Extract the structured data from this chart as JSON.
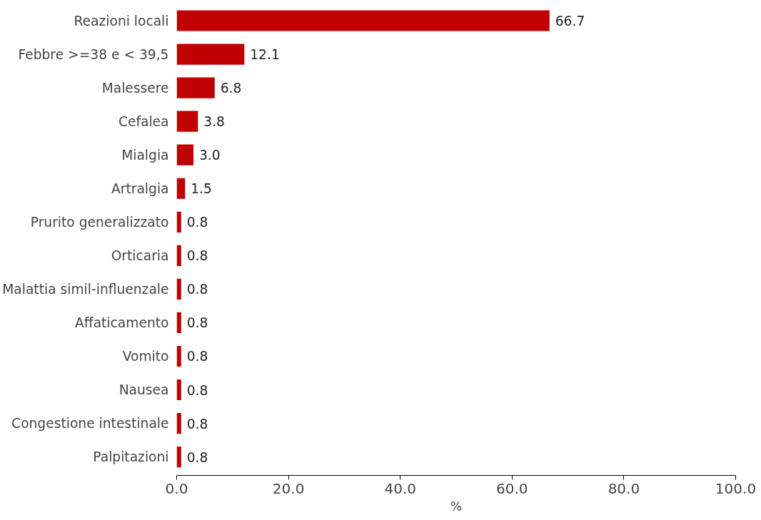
{
  "chart_data": {
    "type": "bar",
    "orientation": "horizontal",
    "xlabel": "%",
    "categories": [
      "Reazioni locali",
      "Febbre >=38 e < 39,5",
      "Malessere",
      "Cefalea",
      "Mialgia",
      "Artralgia",
      "Prurito generalizzato",
      "Orticaria",
      "Malattia simil-influenzale",
      "Affaticamento",
      "Vomito",
      "Nausea",
      "Congestione intestinale",
      "Palpitazioni"
    ],
    "values": [
      66.7,
      12.1,
      6.8,
      3.8,
      3.0,
      1.5,
      0.8,
      0.8,
      0.8,
      0.8,
      0.8,
      0.8,
      0.8,
      0.8
    ],
    "value_labels": [
      "66.7",
      "12.1",
      "6.8",
      "3.8",
      "3.0",
      "1.5",
      "0.8",
      "0.8",
      "0.8",
      "0.8",
      "0.8",
      "0.8",
      "0.8",
      "0.8"
    ],
    "color": "#c00000",
    "xlim": [
      0,
      100
    ],
    "xticks": [
      {
        "value": 0,
        "label": "0.0"
      },
      {
        "value": 20,
        "label": "20.0"
      },
      {
        "value": 40,
        "label": "40.0"
      },
      {
        "value": 60,
        "label": "60.0"
      },
      {
        "value": 80,
        "label": "80.0"
      },
      {
        "value": 100,
        "label": "100.0"
      }
    ],
    "grid": false
  }
}
